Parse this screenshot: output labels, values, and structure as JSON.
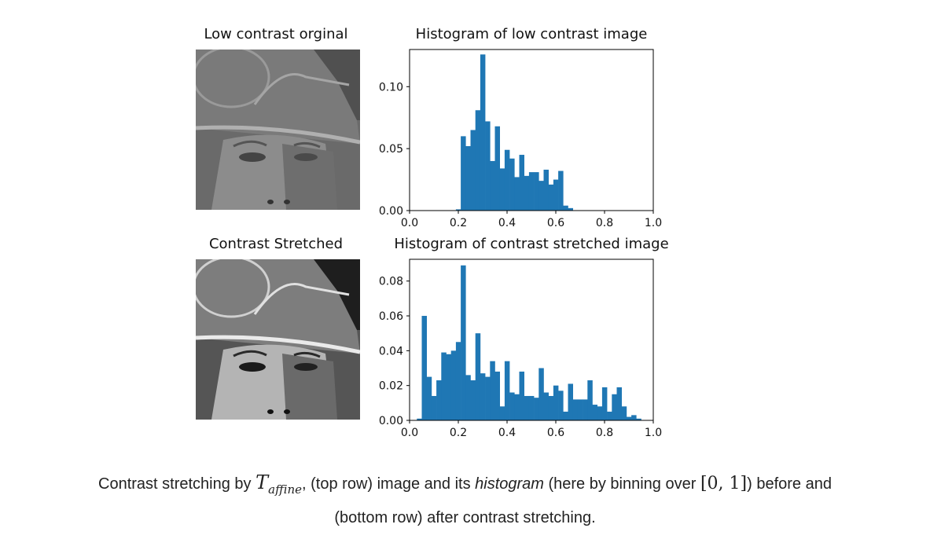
{
  "titles": {
    "img_top": "Low contrast orginal",
    "hist_top": "Histogram of low contrast image",
    "img_bottom": "Contrast Stretched",
    "hist_bottom": "Histogram of contrast stretched image"
  },
  "chart_data": [
    {
      "type": "bar",
      "title": "Histogram of low contrast image",
      "bin_width": 0.02,
      "bin_start": 0.19,
      "values": [
        0.001,
        0.06,
        0.052,
        0.065,
        0.081,
        0.126,
        0.072,
        0.04,
        0.068,
        0.034,
        0.049,
        0.042,
        0.027,
        0.045,
        0.028,
        0.031,
        0.031,
        0.024,
        0.033,
        0.021,
        0.025,
        0.032,
        0.004,
        0.002
      ],
      "xlim": [
        0,
        1
      ],
      "ylim": [
        0,
        0.13
      ],
      "xticks": [
        "0.0",
        "0.2",
        "0.4",
        "0.6",
        "0.8",
        "1.0"
      ],
      "xtick_values": [
        0,
        0.2,
        0.4,
        0.6,
        0.8,
        1.0
      ],
      "yticks": [
        "0.00",
        "0.05",
        "0.10"
      ],
      "ytick_values": [
        0,
        0.05,
        0.1
      ],
      "color": "#1f77b4"
    },
    {
      "type": "bar",
      "title": "Histogram of contrast stretched image",
      "bin_width": 0.02,
      "bin_start": 0.03,
      "values": [
        0.001,
        0.06,
        0.025,
        0.014,
        0.023,
        0.039,
        0.038,
        0.04,
        0.045,
        0.089,
        0.026,
        0.023,
        0.05,
        0.027,
        0.025,
        0.034,
        0.028,
        0.008,
        0.034,
        0.016,
        0.015,
        0.028,
        0.014,
        0.014,
        0.013,
        0.03,
        0.016,
        0.014,
        0.02,
        0.017,
        0.005,
        0.021,
        0.012,
        0.012,
        0.012,
        0.023,
        0.009,
        0.008,
        0.019,
        0.005,
        0.015,
        0.019,
        0.008,
        0.002,
        0.003,
        0.001
      ],
      "xlim": [
        0,
        1
      ],
      "ylim": [
        0,
        0.0925
      ],
      "xticks": [
        "0.0",
        "0.2",
        "0.4",
        "0.6",
        "0.8",
        "1.0"
      ],
      "xtick_values": [
        0,
        0.2,
        0.4,
        0.6,
        0.8,
        1.0
      ],
      "yticks": [
        "0.00",
        "0.02",
        "0.04",
        "0.06",
        "0.08"
      ],
      "ytick_values": [
        0,
        0.02,
        0.04,
        0.06,
        0.08
      ],
      "color": "#1f77b4"
    }
  ],
  "caption": {
    "part1": "Contrast stretching by ",
    "math_T": "T",
    "math_sub": "affine",
    "part2": ", (top row) image and its ",
    "italic": "histogram",
    "part3": " (here by binning over ",
    "interval": "[0, 1]",
    "part4": ") before and",
    "line2": "(bottom row) after contrast stretching."
  }
}
